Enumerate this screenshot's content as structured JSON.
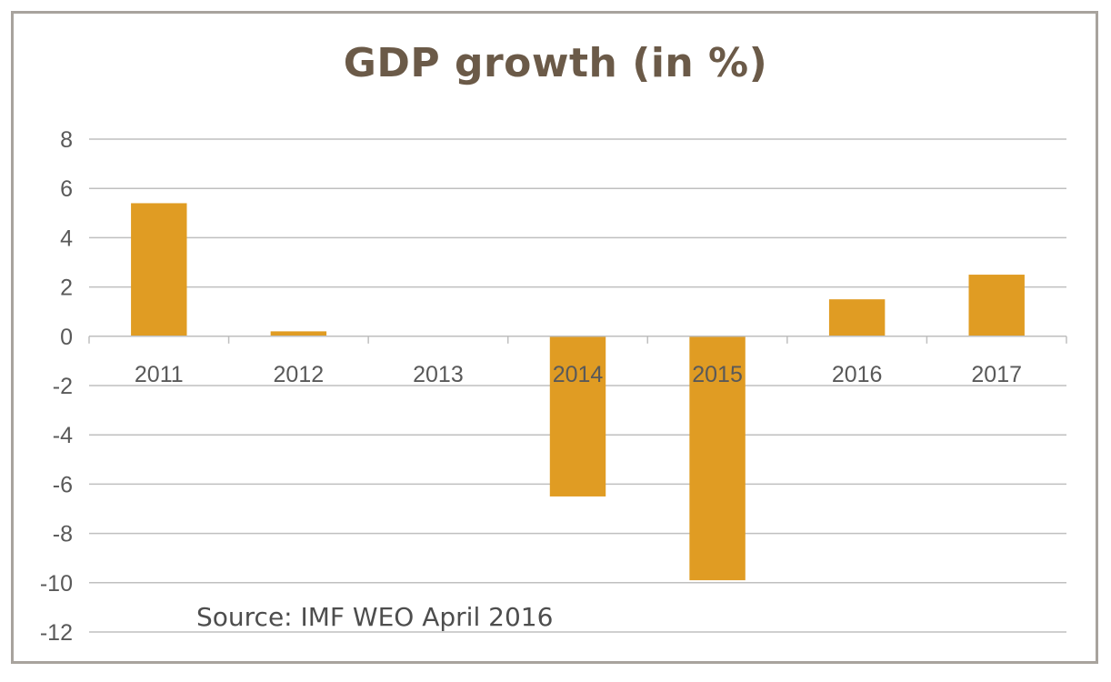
{
  "chart_data": {
    "type": "bar",
    "title": "GDP growth (in %)",
    "xlabel": "",
    "ylabel": "",
    "categories": [
      "2011",
      "2012",
      "2013",
      "2014",
      "2015",
      "2016",
      "2017"
    ],
    "values": [
      5.4,
      0.2,
      0.0,
      -6.5,
      -9.9,
      1.5,
      2.5
    ],
    "ylim": [
      -12,
      8
    ],
    "yticks": [
      "8",
      "6",
      "4",
      "2",
      "0",
      "-2",
      "-4",
      "-6",
      "-8",
      "-10",
      "-12"
    ],
    "grid": true,
    "bar_color": "#e09c23",
    "annotation": "Source: IMF WEO April 2016"
  }
}
